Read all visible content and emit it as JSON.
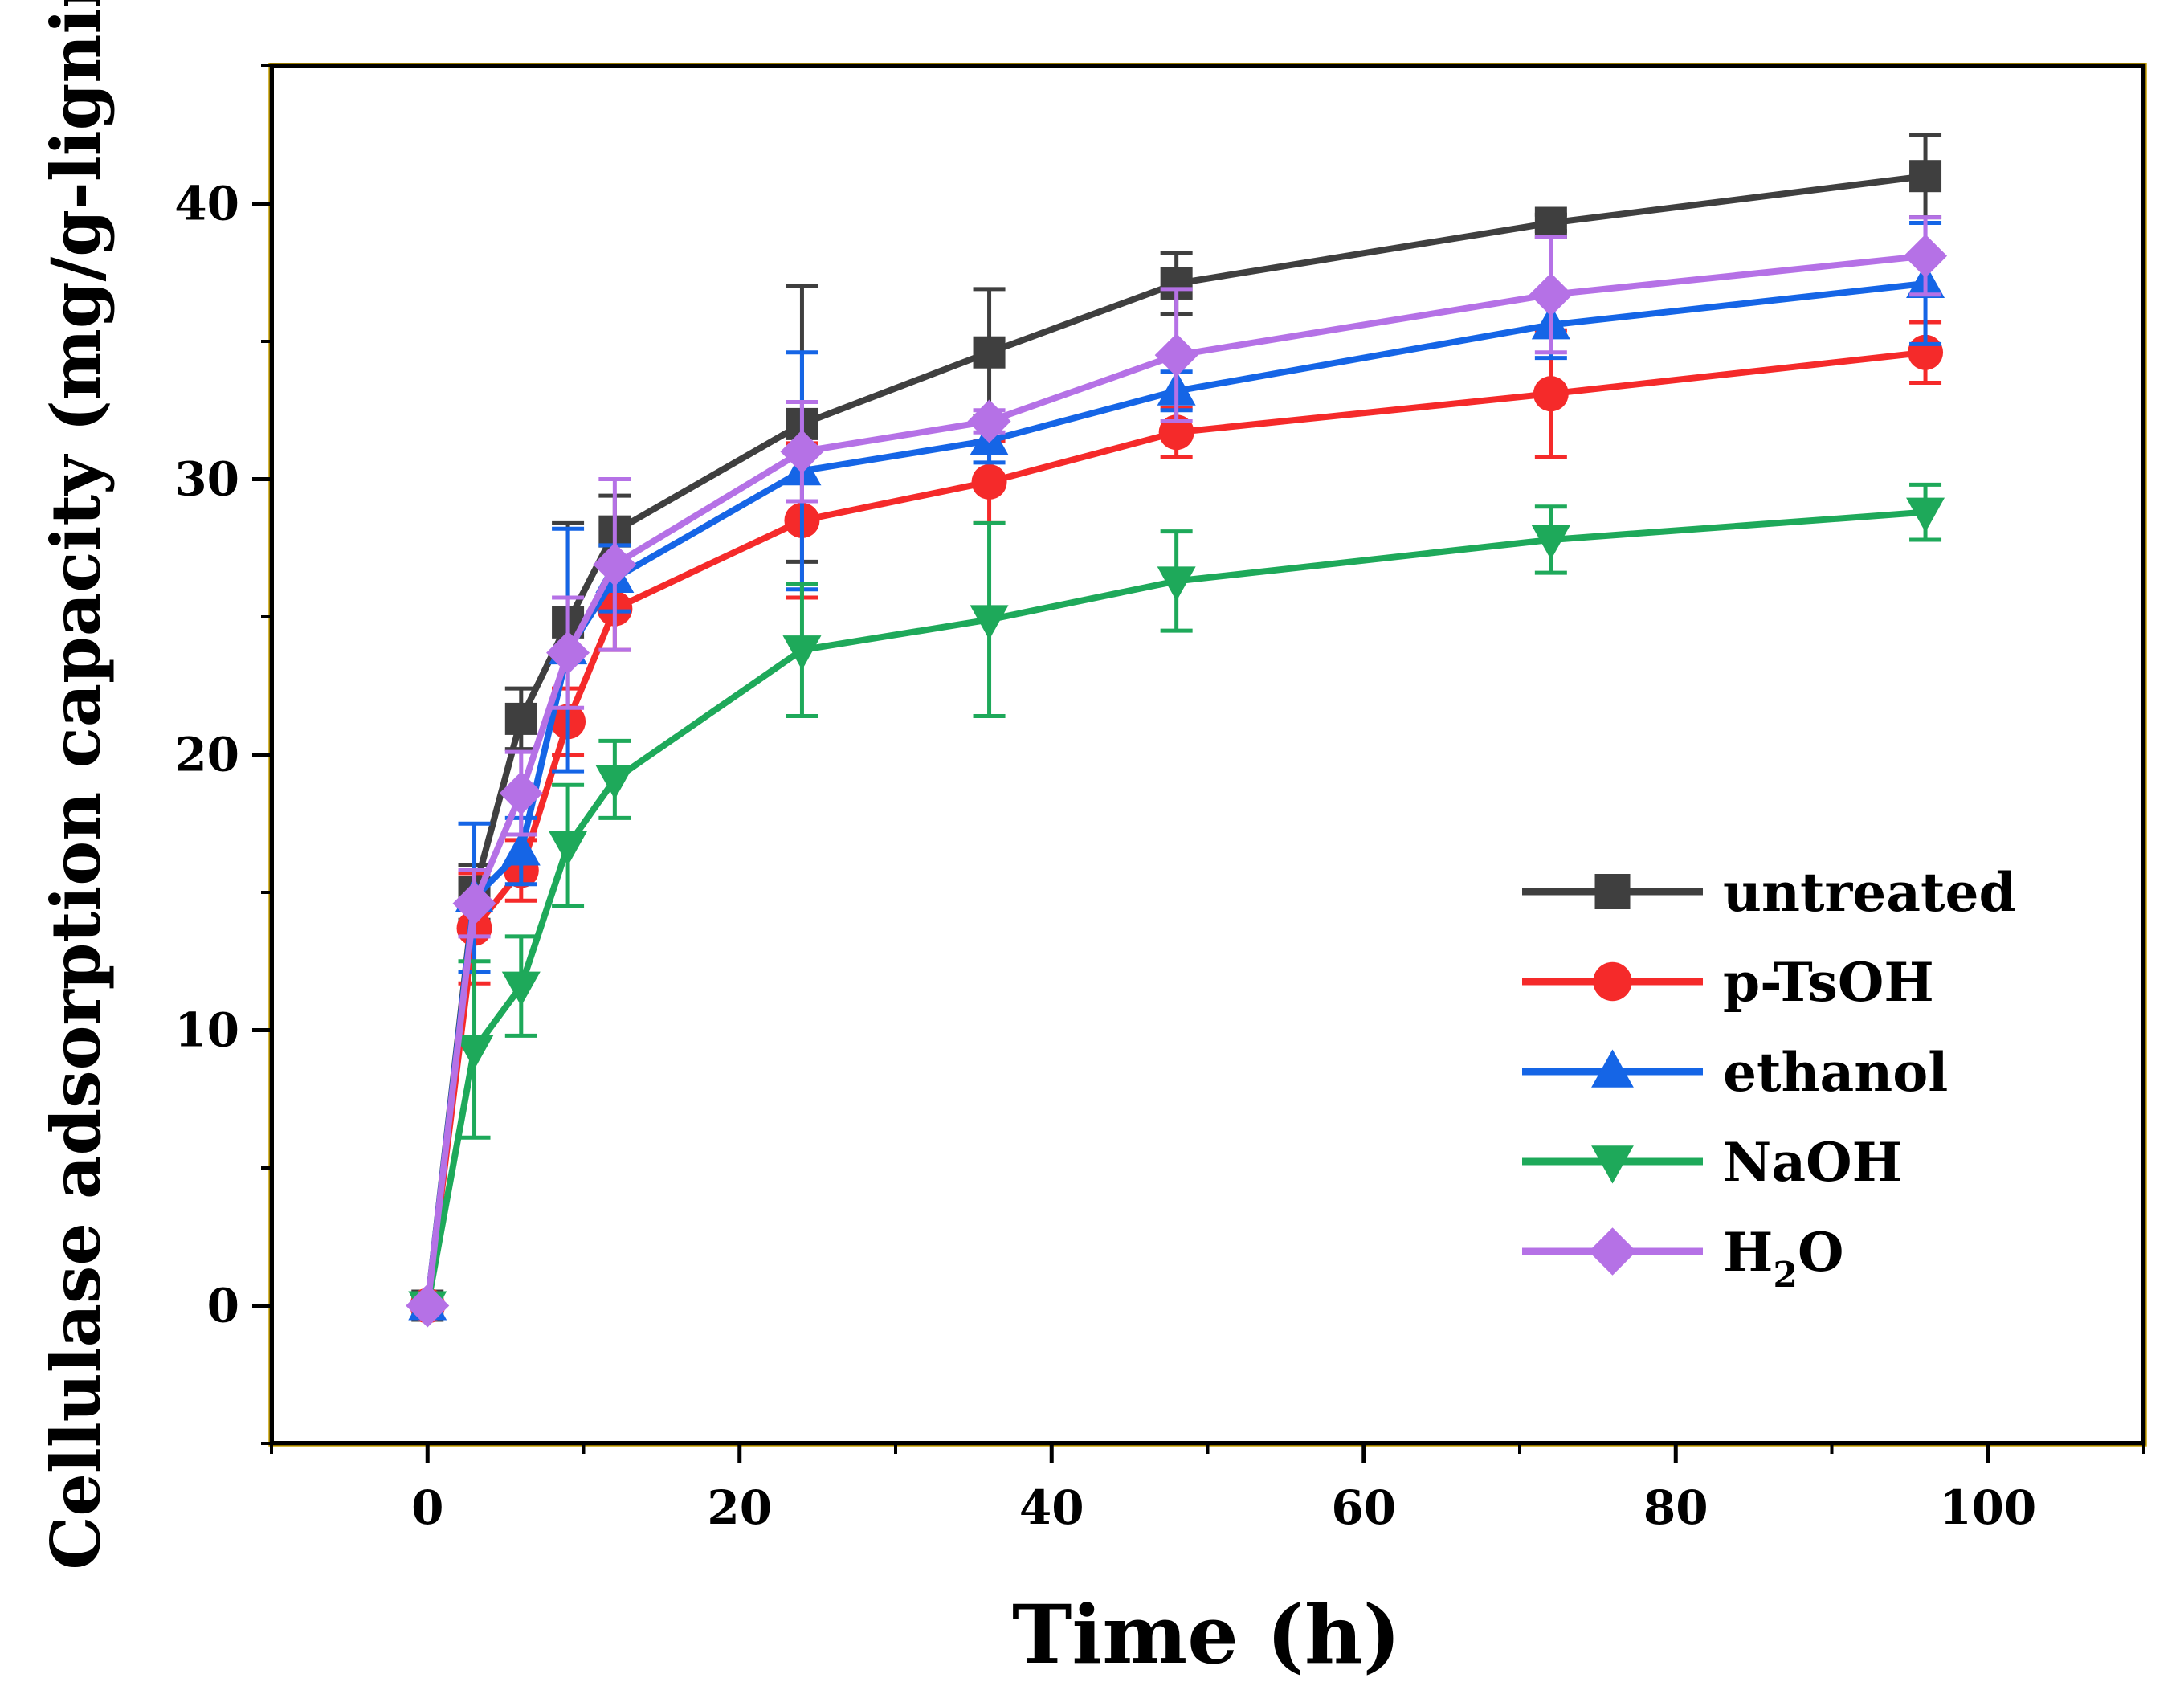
{
  "chart_data": {
    "type": "line",
    "title": "",
    "xlabel": "Time (h)",
    "ylabel": "Cellulase adsorption capacity (mg/g-lignin",
    "xlim": [
      -10,
      110
    ],
    "ylim": [
      -5,
      45
    ],
    "x_ticks": [
      0,
      20,
      40,
      60,
      80,
      100
    ],
    "y_ticks": [
      0,
      10,
      20,
      30,
      40
    ],
    "grid": false,
    "legend_position": "right",
    "x": [
      0,
      3,
      6,
      9,
      12,
      24,
      36,
      48,
      72,
      96
    ],
    "series": [
      {
        "name": "untreated",
        "marker": "square",
        "color": "#3f3f3f",
        "values": [
          0,
          15.0,
          21.3,
          24.8,
          28.1,
          32.0,
          34.6,
          37.1,
          39.3,
          41.0
        ],
        "errors": [
          0,
          1.0,
          1.1,
          3.6,
          1.3,
          5.0,
          2.3,
          1.1,
          0.3,
          1.5
        ]
      },
      {
        "name": "p-TsOH",
        "marker": "circle",
        "color": "#f52a2a",
        "values": [
          0,
          13.7,
          15.8,
          21.2,
          25.3,
          28.5,
          29.9,
          31.7,
          33.1,
          34.6
        ],
        "errors": [
          0,
          2.0,
          1.1,
          1.2,
          1.5,
          2.8,
          1.5,
          0.9,
          2.3,
          1.1
        ]
      },
      {
        "name": "ethanol",
        "marker": "triangle-up",
        "color": "#1565e6",
        "values": [
          0,
          14.8,
          16.5,
          23.8,
          26.4,
          30.3,
          31.4,
          33.2,
          35.6,
          37.1
        ],
        "errors": [
          0,
          2.7,
          1.2,
          4.4,
          1.2,
          4.3,
          0.8,
          0.7,
          1.2,
          2.2
        ]
      },
      {
        "name": "NaOH",
        "marker": "triangle-down",
        "color": "#1ea95a",
        "values": [
          0,
          9.3,
          11.6,
          16.7,
          19.1,
          23.8,
          24.9,
          26.3,
          27.8,
          28.8
        ],
        "errors": [
          0,
          3.2,
          1.8,
          2.2,
          1.4,
          2.4,
          3.5,
          1.8,
          1.2,
          1.0
        ]
      },
      {
        "name": "H2O",
        "label_main": "H",
        "label_sub": "2",
        "label_tail": "O",
        "marker": "diamond",
        "color": "#b571e6",
        "values": [
          0,
          14.6,
          18.6,
          23.7,
          26.9,
          31.0,
          32.1,
          34.5,
          36.7,
          38.1
        ],
        "errors": [
          0,
          1.2,
          1.5,
          2.0,
          3.1,
          1.8,
          0.4,
          2.4,
          2.1,
          1.4
        ]
      }
    ],
    "frame_color": "#000000",
    "frame_accent_color": "#c9a100"
  }
}
